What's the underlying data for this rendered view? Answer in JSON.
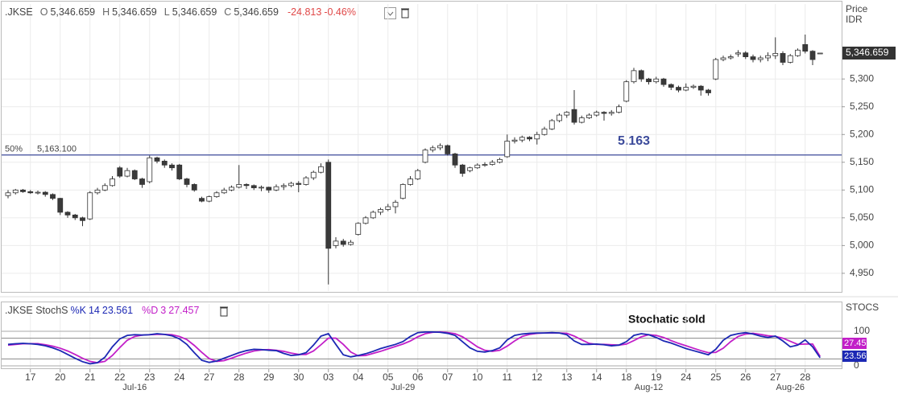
{
  "header": {
    "symbol": ".JKSE",
    "o_label": "O",
    "open": "5,346.659",
    "h_label": "H",
    "high": "5,346.659",
    "l_label": "L",
    "low": "5,346.659",
    "c_label": "C",
    "close": "5,346.659",
    "change": "-24.813",
    "change_pct": "-0.46%"
  },
  "chart_data": [
    {
      "type": "candlestick",
      "axis_title": "Price",
      "axis_unit": "IDR",
      "up_color": "#ffffff",
      "down_color": "#3a3a3a",
      "grid": true,
      "ylim": [
        4918,
        5435
      ],
      "yticks": [
        {
          "value": 4950,
          "label": "4,950"
        },
        {
          "value": 5000,
          "label": "5,000"
        },
        {
          "value": 5050,
          "label": "5,050"
        },
        {
          "value": 5100,
          "label": "5,100"
        },
        {
          "value": 5150,
          "label": "5,150"
        },
        {
          "value": 5200,
          "label": "5,200"
        },
        {
          "value": 5250,
          "label": "5,250"
        },
        {
          "value": 5300,
          "label": "5,300"
        }
      ],
      "last_price": {
        "value": 5346.659,
        "label": "5,346.659"
      },
      "hline": {
        "value": 5163.1,
        "level_label": "50%",
        "value_label": "5,163.100",
        "color": "#3b4a9a"
      },
      "annotation": "5.163",
      "x": [
        null,
        null,
        null,
        "17",
        null,
        null,
        null,
        "20",
        null,
        null,
        null,
        "21",
        null,
        null,
        null,
        "22",
        null,
        null,
        null,
        "23",
        null,
        null,
        null,
        "24",
        null,
        null,
        null,
        "27",
        null,
        null,
        null,
        "28",
        null,
        null,
        null,
        "29",
        null,
        null,
        null,
        "30",
        null,
        null,
        null,
        "03",
        null,
        null,
        null,
        "04",
        null,
        null,
        null,
        "05",
        null,
        null,
        null,
        "06",
        null,
        null,
        null,
        "07",
        null,
        null,
        null,
        "10",
        null,
        null,
        null,
        "11",
        null,
        null,
        null,
        "12",
        null,
        null,
        null,
        "13",
        null,
        null,
        null,
        "14",
        null,
        null,
        null,
        "18",
        null,
        null,
        null,
        "19",
        null,
        null,
        null,
        "24",
        null,
        null,
        null,
        "25",
        null,
        null,
        null,
        "26",
        null,
        null,
        null,
        "27",
        null,
        null,
        null,
        "28",
        null,
        null
      ],
      "x_major": [
        {
          "value": 17,
          "label": "Jul-16"
        },
        {
          "value": 53,
          "label": "Jul-29"
        },
        {
          "value": 86,
          "label": "Aug-12"
        },
        {
          "value": 105,
          "label": "Aug-26"
        }
      ],
      "ohlc": [
        [
          5090,
          5100,
          5085,
          5095
        ],
        [
          5095,
          5102,
          5092,
          5100
        ],
        [
          5100,
          5102,
          5095,
          5097
        ],
        [
          5097,
          5100,
          5093,
          5095
        ],
        [
          5095,
          5099,
          5092,
          5096
        ],
        [
          5096,
          5098,
          5088,
          5092
        ],
        [
          5092,
          5094,
          5082,
          5085
        ],
        [
          5085,
          5086,
          5055,
          5060
        ],
        [
          5060,
          5062,
          5050,
          5055
        ],
        [
          5055,
          5057,
          5046,
          5050
        ],
        [
          5050,
          5052,
          5035,
          5045
        ],
        [
          5048,
          5098,
          5046,
          5095
        ],
        [
          5095,
          5104,
          5092,
          5100
        ],
        [
          5100,
          5112,
          5098,
          5108
        ],
        [
          5108,
          5125,
          5106,
          5120
        ],
        [
          5140,
          5143,
          5122,
          5125
        ],
        [
          5125,
          5140,
          5123,
          5135
        ],
        [
          5135,
          5137,
          5118,
          5120
        ],
        [
          5120,
          5122,
          5104,
          5110
        ],
        [
          5115,
          5162,
          5112,
          5158
        ],
        [
          5158,
          5160,
          5148,
          5152
        ],
        [
          5152,
          5155,
          5140,
          5145
        ],
        [
          5145,
          5148,
          5135,
          5140
        ],
        [
          5145,
          5147,
          5118,
          5120
        ],
        [
          5120,
          5122,
          5105,
          5110
        ],
        [
          5110,
          5112,
          5097,
          5100
        ],
        [
          5085,
          5088,
          5078,
          5080
        ],
        [
          5080,
          5090,
          5078,
          5088
        ],
        [
          5088,
          5098,
          5086,
          5095
        ],
        [
          5095,
          5104,
          5093,
          5100
        ],
        [
          5100,
          5108,
          5098,
          5105
        ],
        [
          5105,
          5145,
          5103,
          5110
        ],
        [
          5110,
          5112,
          5102,
          5108
        ],
        [
          5108,
          5110,
          5100,
          5104
        ],
        [
          5104,
          5108,
          5098,
          5105
        ],
        [
          5105,
          5106,
          5095,
          5100
        ],
        [
          5100,
          5110,
          5098,
          5106
        ],
        [
          5106,
          5112,
          5100,
          5108
        ],
        [
          5108,
          5115,
          5105,
          5112
        ],
        [
          5112,
          5116,
          5096,
          5110
        ],
        [
          5110,
          5125,
          5108,
          5122
        ],
        [
          5122,
          5135,
          5118,
          5132
        ],
        [
          5132,
          5148,
          5130,
          5142
        ],
        [
          5150,
          5155,
          4930,
          4995
        ],
        [
          5000,
          5015,
          4995,
          5008
        ],
        [
          5008,
          5012,
          4998,
          5002
        ],
        [
          5002,
          5010,
          5000,
          5006
        ],
        [
          5020,
          5042,
          5018,
          5040
        ],
        [
          5040,
          5053,
          5038,
          5050
        ],
        [
          5050,
          5063,
          5048,
          5060
        ],
        [
          5060,
          5068,
          5055,
          5065
        ],
        [
          5065,
          5075,
          5062,
          5070
        ],
        [
          5070,
          5082,
          5058,
          5078
        ],
        [
          5085,
          5112,
          5083,
          5110
        ],
        [
          5110,
          5125,
          5108,
          5120
        ],
        [
          5120,
          5138,
          5118,
          5135
        ],
        [
          5150,
          5175,
          5148,
          5172
        ],
        [
          5172,
          5180,
          5168,
          5176
        ],
        [
          5176,
          5184,
          5172,
          5180
        ],
        [
          5180,
          5182,
          5162,
          5165
        ],
        [
          5165,
          5167,
          5140,
          5145
        ],
        [
          5145,
          5147,
          5124,
          5130
        ],
        [
          5135,
          5142,
          5132,
          5140
        ],
        [
          5140,
          5148,
          5138,
          5145
        ],
        [
          5145,
          5150,
          5142,
          5146
        ],
        [
          5146,
          5154,
          5144,
          5150
        ],
        [
          5150,
          5158,
          5148,
          5155
        ],
        [
          5160,
          5200,
          5158,
          5188
        ],
        [
          5188,
          5195,
          5184,
          5190
        ],
        [
          5190,
          5198,
          5186,
          5195
        ],
        [
          5195,
          5197,
          5188,
          5192
        ],
        [
          5192,
          5205,
          5182,
          5200
        ],
        [
          5200,
          5214,
          5198,
          5210
        ],
        [
          5210,
          5228,
          5208,
          5225
        ],
        [
          5225,
          5238,
          5222,
          5235
        ],
        [
          5235,
          5242,
          5230,
          5240
        ],
        [
          5245,
          5280,
          5218,
          5222
        ],
        [
          5222,
          5234,
          5220,
          5230
        ],
        [
          5230,
          5238,
          5228,
          5235
        ],
        [
          5235,
          5243,
          5232,
          5240
        ],
        [
          5240,
          5242,
          5225,
          5238
        ],
        [
          5238,
          5244,
          5234,
          5240
        ],
        [
          5240,
          5254,
          5238,
          5250
        ],
        [
          5260,
          5298,
          5258,
          5295
        ],
        [
          5295,
          5320,
          5292,
          5315
        ],
        [
          5315,
          5317,
          5295,
          5300
        ],
        [
          5300,
          5302,
          5290,
          5295
        ],
        [
          5295,
          5304,
          5292,
          5300
        ],
        [
          5300,
          5302,
          5286,
          5290
        ],
        [
          5290,
          5292,
          5280,
          5285
        ],
        [
          5285,
          5288,
          5276,
          5280
        ],
        [
          5280,
          5292,
          5278,
          5285
        ],
        [
          5285,
          5290,
          5282,
          5287
        ],
        [
          5287,
          5289,
          5270,
          5280
        ],
        [
          5280,
          5282,
          5270,
          5275
        ],
        [
          5300,
          5338,
          5298,
          5335
        ],
        [
          5335,
          5342,
          5332,
          5338
        ],
        [
          5338,
          5344,
          5335,
          5340
        ],
        [
          5345,
          5352,
          5340,
          5347
        ],
        [
          5347,
          5350,
          5336,
          5340
        ],
        [
          5340,
          5344,
          5330,
          5335
        ],
        [
          5335,
          5342,
          5330,
          5338
        ],
        [
          5338,
          5348,
          5332,
          5342
        ],
        [
          5342,
          5375,
          5336,
          5346
        ],
        [
          5346,
          5350,
          5325,
          5330
        ],
        [
          5330,
          5345,
          5328,
          5342
        ],
        [
          5342,
          5355,
          5340,
          5352
        ],
        [
          5362,
          5380,
          5346,
          5350
        ],
        [
          5350,
          5352,
          5325,
          5335
        ],
        [
          5346.659,
          5346.659,
          5346.659,
          5346.659
        ]
      ]
    },
    {
      "type": "line",
      "title": ".JKSE StochS",
      "axis_title": "STOCS",
      "annotation": "Stochatic sold",
      "ylim": [
        -7,
        179
      ],
      "yticks": [
        0,
        100
      ],
      "levels": [
        20,
        80
      ],
      "series": [
        {
          "name": "%K",
          "period": 14,
          "color": "#1c28b4",
          "values": [
            62,
            64,
            65,
            64,
            62,
            58,
            52,
            44,
            33,
            22,
            12,
            6,
            9,
            25,
            55,
            78,
            88,
            90,
            89,
            90,
            93,
            91,
            87,
            78,
            62,
            38,
            16,
            10,
            14,
            22,
            30,
            38,
            44,
            48,
            47,
            45,
            44,
            36,
            30,
            32,
            38,
            60,
            86,
            93,
            62,
            32,
            26,
            30,
            35,
            42,
            50,
            56,
            62,
            70,
            85,
            96,
            98,
            98,
            97,
            94,
            88,
            70,
            52,
            42,
            40,
            44,
            52,
            75,
            88,
            92,
            94,
            95,
            95,
            96,
            95,
            90,
            72,
            62,
            62,
            63,
            61,
            58,
            60,
            70,
            88,
            93,
            90,
            82,
            72,
            66,
            58,
            50,
            44,
            38,
            32,
            48,
            74,
            88,
            93,
            96,
            92,
            86,
            82,
            86,
            72,
            55,
            60,
            75,
            55,
            23.561
          ]
        },
        {
          "name": "%D",
          "period": 3,
          "color": "#c21fc8",
          "values": [
            60,
            62,
            64,
            64,
            64,
            61,
            57,
            51,
            43,
            33,
            22,
            13,
            9,
            13,
            30,
            53,
            74,
            85,
            89,
            90,
            91,
            91,
            90,
            85,
            76,
            59,
            39,
            21,
            13,
            15,
            22,
            30,
            37,
            43,
            46,
            47,
            45,
            42,
            37,
            33,
            33,
            43,
            61,
            80,
            80,
            62,
            40,
            29,
            30,
            36,
            42,
            49,
            56,
            63,
            72,
            84,
            93,
            97,
            98,
            96,
            93,
            84,
            70,
            55,
            45,
            42,
            45,
            57,
            72,
            85,
            91,
            94,
            95,
            95,
            95,
            94,
            86,
            75,
            65,
            62,
            62,
            61,
            60,
            63,
            73,
            84,
            90,
            88,
            82,
            73,
            65,
            58,
            51,
            44,
            38,
            39,
            51,
            70,
            85,
            92,
            94,
            91,
            87,
            85,
            80,
            71,
            62,
            63,
            63,
            27.457
          ]
        }
      ]
    }
  ]
}
